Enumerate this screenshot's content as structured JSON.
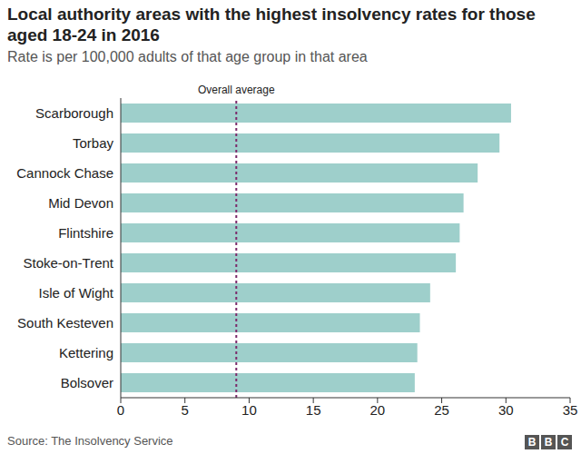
{
  "chart_data": {
    "type": "bar",
    "title": "Local authority areas with the highest insolvency rates for those aged 18-24 in 2016",
    "subtitle": "Rate is per 100,000 adults of that age group in that area",
    "categories": [
      "Scarborough",
      "Torbay",
      "Cannock Chase",
      "Mid Devon",
      "Flintshire",
      "Stoke-on-Trent",
      "Isle of Wight",
      "South Kesteven",
      "Kettering",
      "Bolsover"
    ],
    "values": [
      30.4,
      29.5,
      27.8,
      26.7,
      26.4,
      26.1,
      24.1,
      23.3,
      23.1,
      22.9
    ],
    "color": "#9ecfcb",
    "orientation": "horizontal",
    "xlim": [
      0,
      35
    ],
    "xticks": [
      0,
      5,
      10,
      15,
      20,
      25,
      30,
      35
    ],
    "grid": false,
    "average": {
      "label": "Overall average",
      "value": 9,
      "color": "#7b2a6b"
    },
    "source": "Source: The Insolvency Service",
    "logo": "BBC"
  }
}
